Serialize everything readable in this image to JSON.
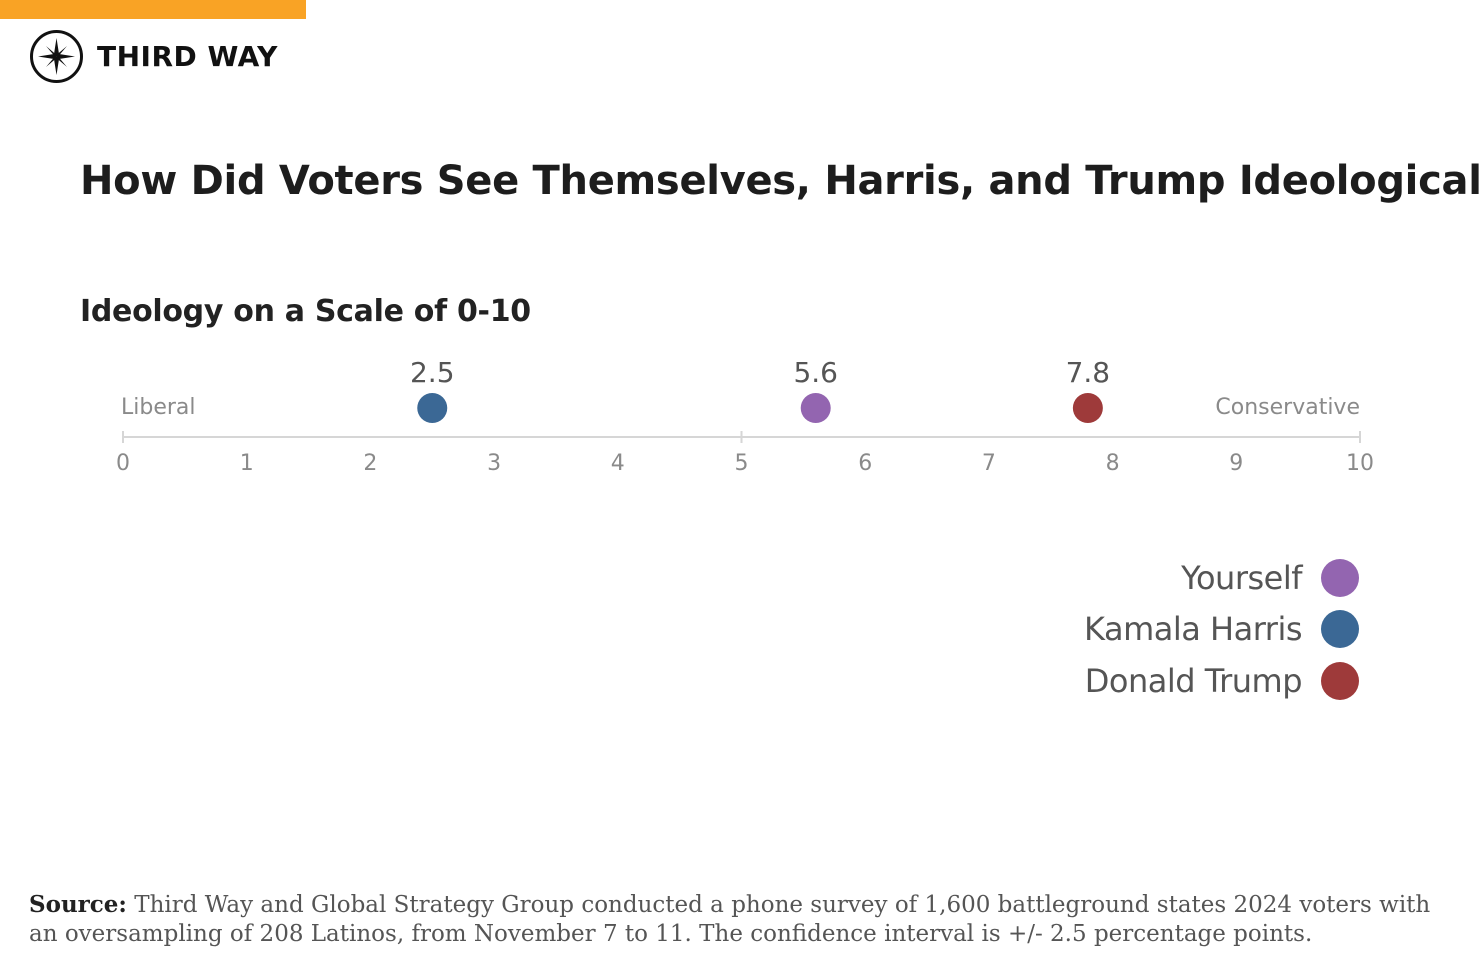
{
  "brand": {
    "name": "THIRD WAY",
    "accent_color": "#F9A325"
  },
  "title": "How Did Voters See Themselves, Harris, and Trump Ideologically?",
  "chart_data": {
    "type": "scatter",
    "title": "How Did Voters See Themselves, Harris, and Trump Ideologically?",
    "subtitle": "Ideology on a Scale of 0-10",
    "xlim": [
      0,
      10
    ],
    "ticks": [
      0,
      1,
      2,
      3,
      4,
      5,
      6,
      7,
      8,
      9,
      10
    ],
    "left_label": "Liberal",
    "right_label": "Conservative",
    "points": [
      {
        "name": "Kamala Harris",
        "value": 2.5,
        "label": "2.5",
        "color": "#3B6895"
      },
      {
        "name": "Yourself",
        "value": 5.6,
        "label": "5.6",
        "color": "#9365B0"
      },
      {
        "name": "Donald Trump",
        "value": 7.8,
        "label": "7.8",
        "color": "#9E3A3A"
      }
    ],
    "legend": [
      {
        "name": "Yourself",
        "color": "#9365B0"
      },
      {
        "name": "Kamala Harris",
        "color": "#3B6895"
      },
      {
        "name": "Donald Trump",
        "color": "#9E3A3A"
      }
    ]
  },
  "source": {
    "label": "Source:",
    "text": "Third Way and Global Strategy Group conducted a phone survey of 1,600 battleground states 2024 voters with an oversampling of 208 Latinos, from November 7 to 11. The confidence interval is +/- 2.5 percentage points."
  }
}
